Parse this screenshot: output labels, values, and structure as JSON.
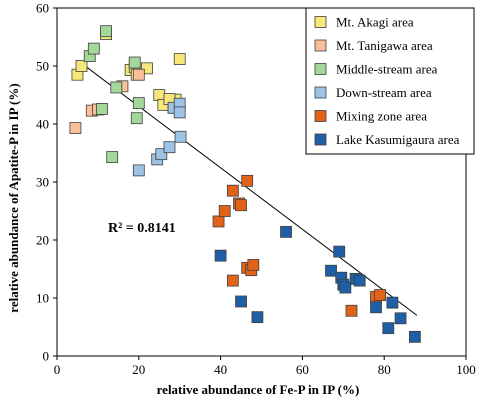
{
  "chart_data": {
    "type": "scatter",
    "xlabel": "relative abundance of Fe-P in IP (%)",
    "ylabel": "relative abundance of Apatite-P in IP (%)",
    "xlim": [
      0,
      100
    ],
    "ylim": [
      0,
      60
    ],
    "xticks": [
      "0",
      "20",
      "40",
      "60",
      "80",
      "100"
    ],
    "yticks": [
      "0",
      "10",
      "20",
      "30",
      "40",
      "50",
      "60"
    ],
    "grid": false,
    "legend_position": "top-right",
    "annotation": "R² = 0.8141",
    "trendline": {
      "x1": 5,
      "y1": 51,
      "x2": 88,
      "y2": 7
    },
    "series": [
      {
        "name": "Mt. Akagi area",
        "color": "#f5e878",
        "points": [
          [
            5,
            48.5
          ],
          [
            6,
            50
          ],
          [
            12,
            55.5
          ],
          [
            18,
            49.3
          ],
          [
            19,
            49.8
          ],
          [
            19.5,
            48.5
          ],
          [
            22,
            49.6
          ],
          [
            25,
            45
          ],
          [
            26,
            43.3
          ],
          [
            28.5,
            42.8
          ],
          [
            30,
            51.2
          ],
          [
            29,
            44.2
          ],
          [
            27.5,
            44.3
          ]
        ]
      },
      {
        "name": "Mt. Tanigawa area",
        "color": "#f8bf9a",
        "points": [
          [
            4.5,
            39.3
          ],
          [
            8.5,
            42.3
          ],
          [
            10,
            42.5
          ],
          [
            16,
            46.5
          ],
          [
            20,
            48.5
          ]
        ]
      },
      {
        "name": "Middle-stream area",
        "color": "#a4d89a",
        "points": [
          [
            8,
            51.7
          ],
          [
            9,
            53
          ],
          [
            11,
            42.6
          ],
          [
            12,
            56
          ],
          [
            13.5,
            34.3
          ],
          [
            14.5,
            46.3
          ],
          [
            19,
            50.6
          ],
          [
            19.5,
            41
          ],
          [
            20,
            43.6
          ]
        ]
      },
      {
        "name": "Down-stream area",
        "color": "#9dc3e6",
        "points": [
          [
            20,
            32
          ],
          [
            24.5,
            33.9
          ],
          [
            25.5,
            34.8
          ],
          [
            27.5,
            36
          ],
          [
            28.5,
            42.8
          ],
          [
            30,
            43.5
          ],
          [
            30,
            42
          ],
          [
            30.2,
            37.8
          ]
        ]
      },
      {
        "name": "Mixing zone area",
        "color": "#e26318",
        "points": [
          [
            39.5,
            23.2
          ],
          [
            41,
            25
          ],
          [
            43,
            28.5
          ],
          [
            44.5,
            26.3
          ],
          [
            45,
            26
          ],
          [
            46.5,
            30.2
          ],
          [
            43,
            13
          ],
          [
            46.5,
            15.2
          ],
          [
            47.5,
            14.8
          ],
          [
            48,
            15.7
          ],
          [
            78,
            10.2
          ],
          [
            79,
            10.5
          ],
          [
            72,
            7.8
          ]
        ]
      },
      {
        "name": "Lake Kasumigaura area",
        "color": "#1f5fa6",
        "points": [
          [
            40,
            17.3
          ],
          [
            45,
            9.4
          ],
          [
            49,
            6.7
          ],
          [
            56,
            21.4
          ],
          [
            67,
            14.7
          ],
          [
            69,
            18
          ],
          [
            69.5,
            13.5
          ],
          [
            70,
            12.3
          ],
          [
            70.5,
            11.8
          ],
          [
            73,
            13.3
          ],
          [
            74,
            13
          ],
          [
            78,
            8.4
          ],
          [
            81,
            4.8
          ],
          [
            82,
            9.2
          ],
          [
            84,
            6.5
          ],
          [
            87.5,
            3.3
          ]
        ]
      }
    ]
  }
}
